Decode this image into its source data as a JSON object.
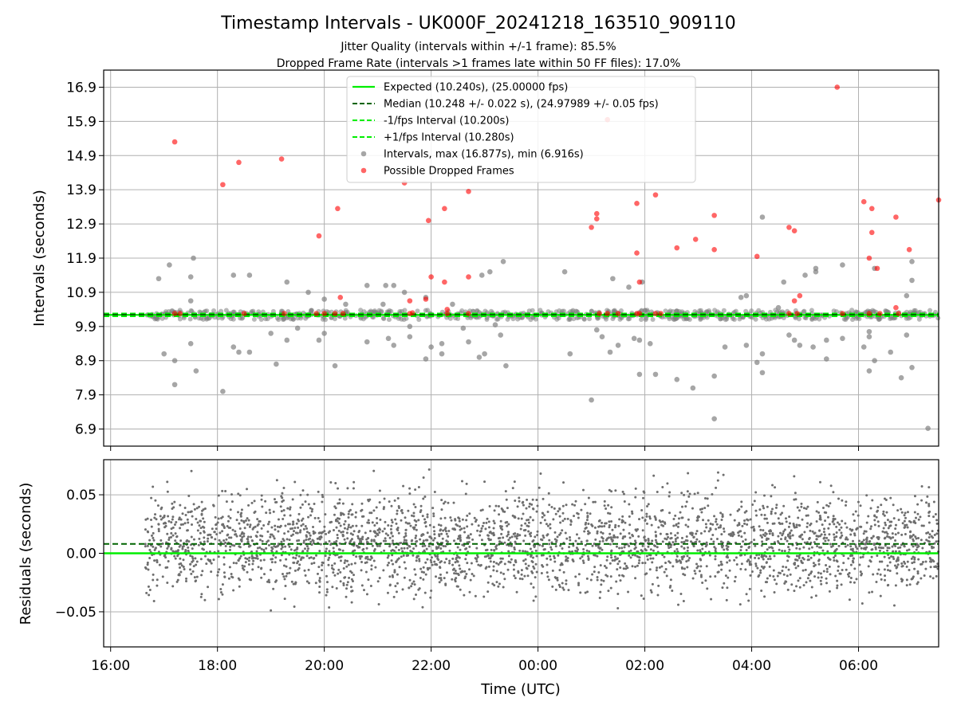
{
  "chart_data": {
    "type": "scatter",
    "title": "Timestamp Intervals - UK000F_20241218_163510_909110",
    "subtitle_lines": [
      "Jitter Quality (intervals within +/-1 frame): 85.5%",
      "Dropped Frame Rate (intervals >1 frames late within 50 FF files): 17.0%"
    ],
    "xlabel": "Time (UTC)",
    "x_ticks": [
      "16:00",
      "18:00",
      "20:00",
      "22:00",
      "00:00",
      "02:00",
      "04:00",
      "06:00"
    ],
    "x_range_hours": [
      15.87,
      31.5
    ],
    "grid": true,
    "legend_placement": "top-center",
    "colors": {
      "expected": "#00ee00",
      "median": "#006400",
      "bounds": "#00ee00",
      "intervals": "#808080",
      "dropped": "#ff0000"
    },
    "legend": [
      {
        "key": "expected",
        "label": "Expected (10.240s), (25.00000 fps)"
      },
      {
        "key": "median",
        "label": "Median (10.248 +/- 0.022 s), (24.97989 +/- 0.05 fps)"
      },
      {
        "key": "lower",
        "label": "-1/fps Interval (10.200s)"
      },
      {
        "key": "upper",
        "label": "+1/fps Interval (10.280s)"
      },
      {
        "key": "intervals",
        "label": "Intervals, max (16.877s), min (6.916s)"
      },
      {
        "key": "dropped",
        "label": "Possible Dropped Frames"
      }
    ],
    "top_panel": {
      "ylabel": "Intervals (seconds)",
      "y_ticks": [
        "6.9",
        "7.9",
        "8.9",
        "9.9",
        "10.9",
        "11.9",
        "12.9",
        "13.9",
        "14.9",
        "15.9",
        "16.9"
      ],
      "ylim": [
        6.4,
        17.4
      ],
      "expected": 10.24,
      "median": 10.248,
      "lower": 10.2,
      "upper": 10.28,
      "dense_band": {
        "x_start_hours": 16.65,
        "x_end_hours": 31.5,
        "y_min": 10.1,
        "y_max": 10.38
      },
      "intervals": [
        [
          16.9,
          11.3
        ],
        [
          17.1,
          11.7
        ],
        [
          17.2,
          8.9
        ],
        [
          17.2,
          8.2
        ],
        [
          17.5,
          11.35
        ],
        [
          17.55,
          11.9
        ],
        [
          17.5,
          10.65
        ],
        [
          17.0,
          9.1
        ],
        [
          17.5,
          9.4
        ],
        [
          17.6,
          8.6
        ],
        [
          18.1,
          8.0
        ],
        [
          18.3,
          9.3
        ],
        [
          18.3,
          11.4
        ],
        [
          18.4,
          9.15
        ],
        [
          18.6,
          11.4
        ],
        [
          18.6,
          9.15
        ],
        [
          19.3,
          11.2
        ],
        [
          19.3,
          9.5
        ],
        [
          19.1,
          8.8
        ],
        [
          19.0,
          9.7
        ],
        [
          19.5,
          9.85
        ],
        [
          19.7,
          10.9
        ],
        [
          19.9,
          9.5
        ],
        [
          20.0,
          9.7
        ],
        [
          20.0,
          10.7
        ],
        [
          20.2,
          8.75
        ],
        [
          20.4,
          10.55
        ],
        [
          20.8,
          9.45
        ],
        [
          20.8,
          11.1
        ],
        [
          21.1,
          10.55
        ],
        [
          21.15,
          11.1
        ],
        [
          21.2,
          9.55
        ],
        [
          21.3,
          9.35
        ],
        [
          21.3,
          11.1
        ],
        [
          21.5,
          10.9
        ],
        [
          21.6,
          9.6
        ],
        [
          21.6,
          9.9
        ],
        [
          21.9,
          8.95
        ],
        [
          21.9,
          10.75
        ],
        [
          22.0,
          9.3
        ],
        [
          22.2,
          9.4
        ],
        [
          22.2,
          9.1
        ],
        [
          22.4,
          10.55
        ],
        [
          22.7,
          9.45
        ],
        [
          22.6,
          9.85
        ],
        [
          22.9,
          9.0
        ],
        [
          22.95,
          11.4
        ],
        [
          23.0,
          9.1
        ],
        [
          23.1,
          11.5
        ],
        [
          23.2,
          9.95
        ],
        [
          23.3,
          9.65
        ],
        [
          23.35,
          11.8
        ],
        [
          23.4,
          8.75
        ],
        [
          24.5,
          11.5
        ],
        [
          24.6,
          9.1
        ],
        [
          25.0,
          7.75
        ],
        [
          25.1,
          9.8
        ],
        [
          25.2,
          9.6
        ],
        [
          25.4,
          11.3
        ],
        [
          25.35,
          9.15
        ],
        [
          25.5,
          9.35
        ],
        [
          25.7,
          11.05
        ],
        [
          25.8,
          9.55
        ],
        [
          25.9,
          9.5
        ],
        [
          25.95,
          11.2
        ],
        [
          26.1,
          9.4
        ],
        [
          25.9,
          8.5
        ],
        [
          26.2,
          8.5
        ],
        [
          26.6,
          8.35
        ],
        [
          26.9,
          8.1
        ],
        [
          27.3,
          7.2
        ],
        [
          27.3,
          8.45
        ],
        [
          27.5,
          9.3
        ],
        [
          27.8,
          10.75
        ],
        [
          27.9,
          10.8
        ],
        [
          27.9,
          9.35
        ],
        [
          28.1,
          8.85
        ],
        [
          28.2,
          9.1
        ],
        [
          28.2,
          8.55
        ],
        [
          28.2,
          13.1
        ],
        [
          28.5,
          10.45
        ],
        [
          28.6,
          11.2
        ],
        [
          28.7,
          9.65
        ],
        [
          28.8,
          9.5
        ],
        [
          28.9,
          9.35
        ],
        [
          29.0,
          11.4
        ],
        [
          29.15,
          9.3
        ],
        [
          29.2,
          11.6
        ],
        [
          29.2,
          11.5
        ],
        [
          29.4,
          9.5
        ],
        [
          29.7,
          11.7
        ],
        [
          29.7,
          9.55
        ],
        [
          29.4,
          8.95
        ],
        [
          30.1,
          9.3
        ],
        [
          30.2,
          8.6
        ],
        [
          30.2,
          9.75
        ],
        [
          30.2,
          9.6
        ],
        [
          30.3,
          8.9
        ],
        [
          30.3,
          11.6
        ],
        [
          30.6,
          9.15
        ],
        [
          30.9,
          10.8
        ],
        [
          30.9,
          9.65
        ],
        [
          30.8,
          8.4
        ],
        [
          31.0,
          11.8
        ],
        [
          31.0,
          11.25
        ],
        [
          31.0,
          8.7
        ],
        [
          31.3,
          6.92
        ]
      ],
      "dropped": [
        [
          17.2,
          15.3
        ],
        [
          17.2,
          10.28
        ],
        [
          17.3,
          10.28
        ],
        [
          18.1,
          14.05
        ],
        [
          18.4,
          14.7
        ],
        [
          18.5,
          10.28
        ],
        [
          19.2,
          14.8
        ],
        [
          19.25,
          10.28
        ],
        [
          19.9,
          12.55
        ],
        [
          19.85,
          10.28
        ],
        [
          20.0,
          10.28
        ],
        [
          20.25,
          13.35
        ],
        [
          20.3,
          10.75
        ],
        [
          20.2,
          10.28
        ],
        [
          20.35,
          10.28
        ],
        [
          21.5,
          14.1
        ],
        [
          21.6,
          10.65
        ],
        [
          21.65,
          10.3
        ],
        [
          21.6,
          10.28
        ],
        [
          21.95,
          13.0
        ],
        [
          21.9,
          10.7
        ],
        [
          22.0,
          11.35
        ],
        [
          22.25,
          13.35
        ],
        [
          22.25,
          11.2
        ],
        [
          22.3,
          10.4
        ],
        [
          22.3,
          10.28
        ],
        [
          22.7,
          13.85
        ],
        [
          22.7,
          11.35
        ],
        [
          22.7,
          10.28
        ],
        [
          25.0,
          12.8
        ],
        [
          25.1,
          13.2
        ],
        [
          25.1,
          13.05
        ],
        [
          25.15,
          10.28
        ],
        [
          25.3,
          10.28
        ],
        [
          25.3,
          15.95
        ],
        [
          25.5,
          10.28
        ],
        [
          25.85,
          13.5
        ],
        [
          25.85,
          12.05
        ],
        [
          25.9,
          11.2
        ],
        [
          25.85,
          10.28
        ],
        [
          25.9,
          10.28
        ],
        [
          26.2,
          13.75
        ],
        [
          26.2,
          10.28
        ],
        [
          26.3,
          10.28
        ],
        [
          26.6,
          12.2
        ],
        [
          26.95,
          12.45
        ],
        [
          27.3,
          13.15
        ],
        [
          27.3,
          12.15
        ],
        [
          28.1,
          11.95
        ],
        [
          28.7,
          12.8
        ],
        [
          28.8,
          12.7
        ],
        [
          28.8,
          10.65
        ],
        [
          28.9,
          10.8
        ],
        [
          28.7,
          10.28
        ],
        [
          28.85,
          10.28
        ],
        [
          29.6,
          16.9
        ],
        [
          29.7,
          10.28
        ],
        [
          30.1,
          13.55
        ],
        [
          30.2,
          11.9
        ],
        [
          30.25,
          13.35
        ],
        [
          30.25,
          12.65
        ],
        [
          30.35,
          11.6
        ],
        [
          30.2,
          10.28
        ],
        [
          30.4,
          10.28
        ],
        [
          30.7,
          13.1
        ],
        [
          30.7,
          10.45
        ],
        [
          30.95,
          12.15
        ],
        [
          31.5,
          13.6
        ],
        [
          30.75,
          10.28
        ]
      ]
    },
    "bottom_panel": {
      "ylabel": "Residuals (seconds)",
      "y_ticks": [
        "0.05",
        "0.00",
        "−0.05"
      ],
      "ylim": [
        -0.08,
        0.08
      ],
      "expected": 0.0,
      "median": 0.008,
      "scatter_start_hours": 16.65,
      "scatter_end_hours": 31.5,
      "residual_typical_range": [
        -0.03,
        0.05
      ]
    }
  }
}
